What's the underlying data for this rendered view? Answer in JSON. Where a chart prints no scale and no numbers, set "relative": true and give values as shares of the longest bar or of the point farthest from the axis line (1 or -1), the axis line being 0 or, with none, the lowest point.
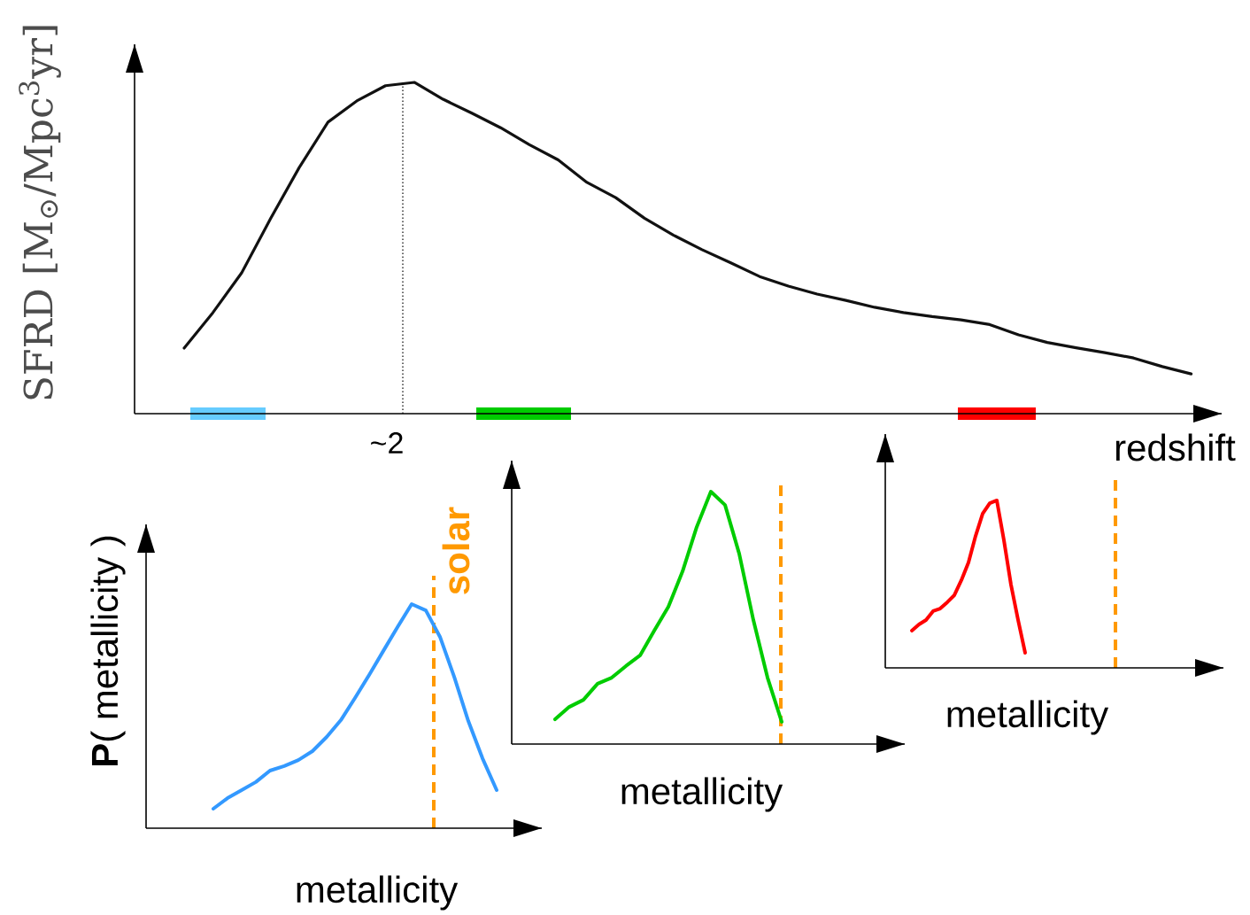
{
  "chart_data": [
    {
      "type": "line",
      "relative": true,
      "xlabel": "redshift",
      "ylabel": "SFRD [M$_{⊙}$/Mpc$^{3}$yr]",
      "annotations": [
        "~2"
      ],
      "categories": [
        null,
        null,
        null,
        null,
        null,
        null,
        null,
        null,
        null,
        null,
        null,
        null,
        null,
        null,
        null,
        null,
        null,
        null,
        null,
        null,
        null,
        null,
        null,
        null,
        null,
        null,
        null,
        null,
        null,
        null,
        null,
        null,
        null,
        null,
        null,
        null
      ],
      "series": [
        {
          "color": "#111111",
          "values": [
            0.198,
            0.305,
            0.425,
            0.588,
            0.743,
            0.88,
            0.944,
            0.99,
            1.0,
            0.949,
            0.907,
            0.863,
            0.812,
            0.766,
            0.698,
            0.652,
            0.59,
            0.539,
            0.495,
            0.455,
            0.414,
            0.385,
            0.361,
            0.342,
            0.321,
            0.305,
            0.293,
            0.283,
            0.269,
            0.238,
            0.215,
            0.199,
            0.184,
            0.168,
            0.142,
            0.12
          ]
        }
      ]
    },
    {
      "type": "line",
      "relative": true,
      "xlabel": "metallicity",
      "ylabel": "**P**( metallicity )",
      "annotations": [
        "solar"
      ],
      "categories": [
        null,
        null,
        null,
        null,
        null,
        null,
        null,
        null,
        null,
        null,
        null,
        null,
        null,
        null,
        null,
        null,
        null,
        null,
        null,
        null,
        null
      ],
      "series": [
        {
          "color": "#3399ff",
          "values": [
            0.087,
            0.134,
            0.17,
            0.206,
            0.257,
            0.277,
            0.304,
            0.344,
            0.407,
            0.482,
            0.581,
            0.684,
            0.791,
            0.897,
            1.0,
            0.972,
            0.854,
            0.676,
            0.478,
            0.312,
            0.17
          ]
        }
      ]
    },
    {
      "type": "line",
      "relative": true,
      "xlabel": "metallicity",
      "categories": [
        null,
        null,
        null,
        null,
        null,
        null,
        null,
        null,
        null,
        null,
        null,
        null,
        null,
        null,
        null,
        null,
        null
      ],
      "series": [
        {
          "color": "#00cc00",
          "values": [
            0.098,
            0.147,
            0.175,
            0.239,
            0.263,
            0.309,
            0.351,
            0.449,
            0.544,
            0.684,
            0.86,
            1.0,
            0.947,
            0.754,
            0.491,
            0.263,
            0.088
          ]
        }
      ]
    },
    {
      "type": "line",
      "relative": true,
      "xlabel": "metallicity",
      "categories": [
        null,
        null,
        null,
        null,
        null,
        null,
        null,
        null,
        null,
        null,
        null,
        null,
        null,
        null,
        null,
        null,
        null
      ],
      "series": [
        {
          "color": "#ff0000",
          "values": [
            0.222,
            0.259,
            0.286,
            0.339,
            0.354,
            0.392,
            0.434,
            0.524,
            0.63,
            0.788,
            0.921,
            0.984,
            1.0,
            0.762,
            0.497,
            0.286,
            0.09
          ]
        }
      ]
    }
  ]
}
